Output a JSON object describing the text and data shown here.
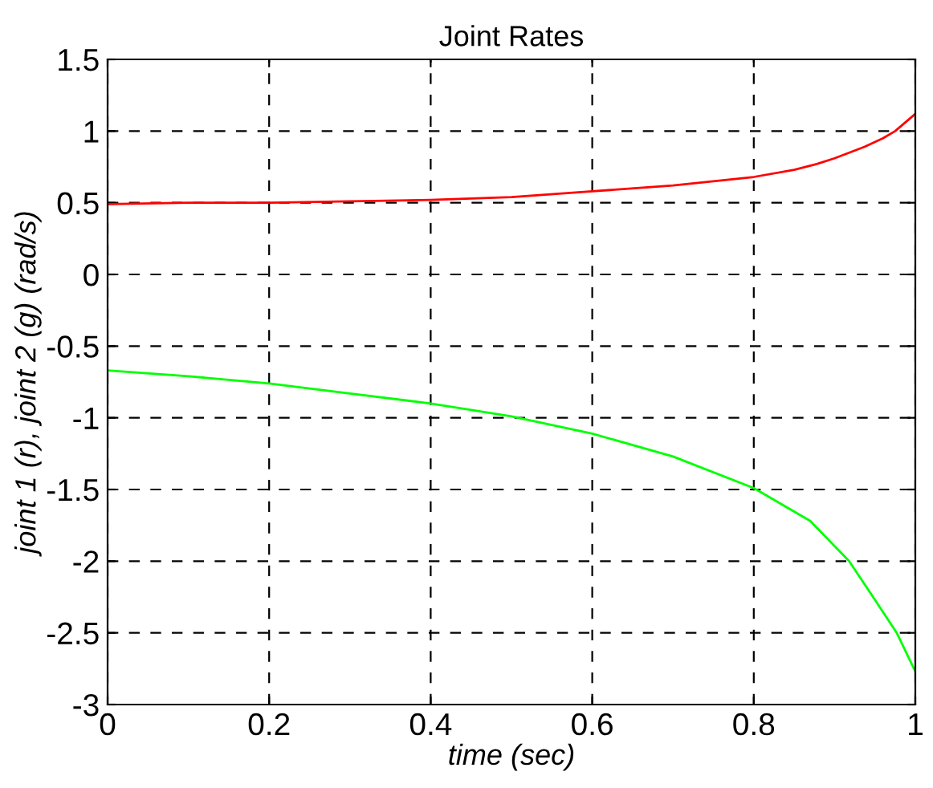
{
  "chart_data": {
    "type": "line",
    "title": "Joint Rates",
    "xlabel": "time (sec)",
    "ylabel": "joint 1 (r), joint 2 (g) (rad/s)",
    "series": [
      {
        "color": "#ff0000",
        "x": [
          0,
          0.1,
          0.2,
          0.3,
          0.4,
          0.5,
          0.6,
          0.7,
          0.8,
          0.85,
          0.878,
          0.9,
          0.937,
          0.96,
          0.975,
          1.0
        ],
        "values": [
          0.49,
          0.5,
          0.5,
          0.51,
          0.52,
          0.54,
          0.58,
          0.62,
          0.68,
          0.73,
          0.77,
          0.81,
          0.89,
          0.95,
          1.0,
          1.12
        ]
      },
      {
        "color": "#00ff00",
        "x": [
          0,
          0.1,
          0.2,
          0.3,
          0.4,
          0.5,
          0.6,
          0.7,
          0.8,
          0.87,
          0.918,
          0.95,
          0.977,
          1.0
        ],
        "values": [
          -0.67,
          -0.71,
          -0.76,
          -0.83,
          -0.9,
          -0.99,
          -1.11,
          -1.27,
          -1.49,
          -1.72,
          -2.0,
          -2.27,
          -2.5,
          -2.77
        ]
      }
    ],
    "xlim": [
      0,
      1
    ],
    "ylim": [
      -3,
      1.5
    ],
    "xticks": [
      0,
      0.2,
      0.4,
      0.6,
      0.8,
      1
    ],
    "yticks": [
      -3,
      -2.5,
      -2,
      -1.5,
      -1,
      -0.5,
      0,
      0.5,
      1,
      1.5
    ],
    "grid": true,
    "line_style": "solid",
    "marker": "none"
  }
}
